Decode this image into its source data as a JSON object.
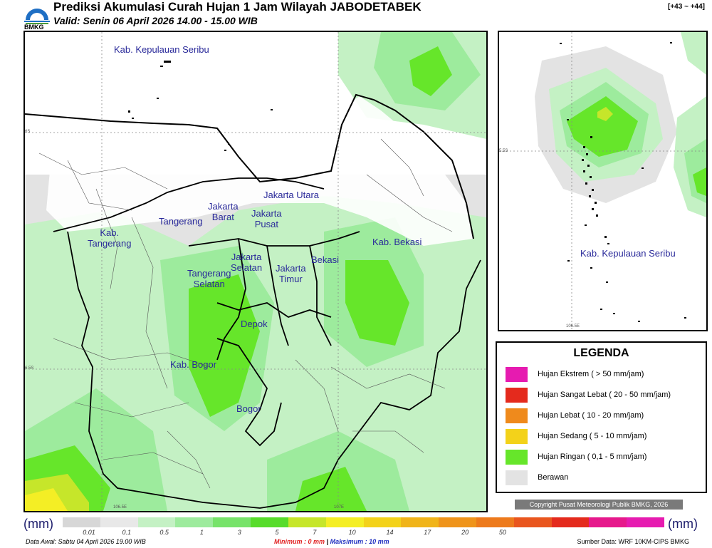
{
  "header": {
    "title": "Prediksi Akumulasi Curah Hujan 1 Jam Wilayah JABODETABEK",
    "subtitle": "Valid: Senin 06 April 2026 14.00 - 15.00 WIB",
    "forecast_range": "[+43 ~ +44]",
    "logo_text": "BMKG"
  },
  "main_map": {
    "regions": [
      {
        "name": "Kab. Kepulauan Seribu"
      },
      {
        "name": "Jakarta Utara"
      },
      {
        "name": "Jakarta\nBarat"
      },
      {
        "name": "Jakarta\nPusat"
      },
      {
        "name": "Tangerang"
      },
      {
        "name": "Kab.\nTangerang"
      },
      {
        "name": "Kab. Bekasi"
      },
      {
        "name": "Bekasi"
      },
      {
        "name": "Jakarta\nSelatan"
      },
      {
        "name": "Jakarta\nTimur"
      },
      {
        "name": "Tangerang\nSelatan"
      },
      {
        "name": "Depok"
      },
      {
        "name": "Kab. Bogor"
      },
      {
        "name": "Bogor"
      }
    ],
    "coord_labels": {
      "lat_top": "6S",
      "lat_bottom": "6.5S",
      "lon_left": "106.5E",
      "lon_right": "107E"
    }
  },
  "inset_map": {
    "label": "Kab. Kepulauan Seribu",
    "coord_labels": {
      "lat": "5.5S",
      "lon": "106.5E"
    }
  },
  "legend": {
    "title": "LEGENDA",
    "items": [
      {
        "label": "Hujan Ekstrem ( > 50 mm/jam)",
        "color": "#e61bb0"
      },
      {
        "label": "Hujan Sangat Lebat ( 20 - 50 mm/jam)",
        "color": "#e42a1d"
      },
      {
        "label": "Hujan Lebat ( 10 - 20 mm/jam)",
        "color": "#ef8a1c"
      },
      {
        "label": "Hujan Sedang ( 5 - 10 mm/jam)",
        "color": "#f3d21a"
      },
      {
        "label": "Hujan Ringan ( 0,1 - 5 mm/jam)",
        "color": "#66e62a"
      },
      {
        "label": "Berawan",
        "color": "#e3e3e3"
      }
    ]
  },
  "copyright": "Copyright Pusat Meteorologi Publik BMKG, 2026",
  "colorbar": {
    "unit_left": "(mm)",
    "unit_right": "(mm)",
    "colors": [
      "#d7d7d7",
      "#e8e8e8",
      "#c4f1c4",
      "#9deb9d",
      "#77e36a",
      "#57dc2b",
      "#c6e62a",
      "#f4ee25",
      "#f3d21a",
      "#f0b41a",
      "#ef941b",
      "#ed7a1c",
      "#e9561e",
      "#e42a1d",
      "#e6198c",
      "#e61bb0"
    ],
    "ticks": [
      "0.01",
      "0.1",
      "0.5",
      "1",
      "3",
      "5",
      "7",
      "10",
      "14",
      "17",
      "20",
      "50"
    ]
  },
  "footer": {
    "data_awal": "Data Awal: Sabtu 04 April 2026 19.00 WIB",
    "minimum_label": "Minimum :",
    "minimum_value": "0 mm",
    "separator": "|",
    "maksimum_label": "Maksimum :",
    "maksimum_value": "10 mm",
    "source": "Sumber Data: WRF 10KM-CIPS BMKG"
  }
}
